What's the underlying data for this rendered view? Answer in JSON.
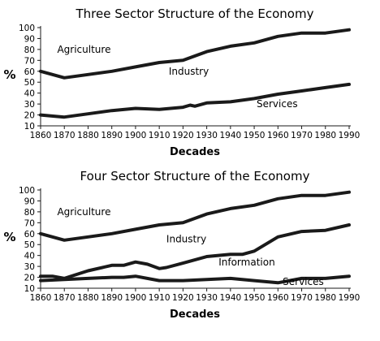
{
  "chart_data": [
    {
      "type": "line",
      "title": "Three Sector Structure of the Economy",
      "xlabel": "Decades",
      "ylabel": "%",
      "xlim": [
        1860,
        1990
      ],
      "ylim": [
        10,
        100
      ],
      "x_ticks": [
        "1860",
        "1870",
        "1880",
        "1890",
        "1900",
        "1910",
        "1920",
        "1930",
        "1940",
        "1950",
        "1960",
        "1970",
        "1980",
        "1990"
      ],
      "y_ticks": [
        "10",
        "20",
        "30",
        "40",
        "50",
        "60",
        "70",
        "80",
        "90",
        "100"
      ],
      "grid": false,
      "series": [
        {
          "name": "Agriculture",
          "points": [
            [
              1860,
              60
            ],
            [
              1870,
              54
            ],
            [
              1880,
              57
            ],
            [
              1890,
              60
            ],
            [
              1900,
              64
            ],
            [
              1910,
              68
            ],
            [
              1920,
              70
            ],
            [
              1930,
              78
            ],
            [
              1940,
              83
            ],
            [
              1950,
              86
            ],
            [
              1960,
              92
            ],
            [
              1970,
              95
            ],
            [
              1980,
              95
            ],
            [
              1990,
              98
            ]
          ]
        },
        {
          "name": "Industry",
          "points": [
            [
              1860,
              20
            ],
            [
              1870,
              18
            ],
            [
              1880,
              21
            ],
            [
              1890,
              24
            ],
            [
              1900,
              26
            ],
            [
              1910,
              25
            ],
            [
              1920,
              27
            ],
            [
              1923,
              29
            ],
            [
              1925,
              28
            ],
            [
              1930,
              31
            ],
            [
              1940,
              32
            ],
            [
              1950,
              35
            ],
            [
              1960,
              39
            ],
            [
              1970,
              42
            ],
            [
              1980,
              45
            ],
            [
              1990,
              48
            ]
          ]
        }
      ],
      "annotations": [
        {
          "text": "Agriculture",
          "x": 1867,
          "y": 77
        },
        {
          "text": "Industry",
          "x": 1914,
          "y": 57
        },
        {
          "text": "Services",
          "x": 1951,
          "y": 27
        }
      ]
    },
    {
      "type": "line",
      "title": "Four Sector Structure of the Economy",
      "xlabel": "Decades",
      "ylabel": "%",
      "xlim": [
        1860,
        1990
      ],
      "ylim": [
        10,
        100
      ],
      "x_ticks": [
        "1860",
        "1870",
        "1880",
        "1890",
        "1900",
        "1910",
        "1920",
        "1930",
        "1940",
        "1950",
        "1960",
        "1970",
        "1980",
        "1990"
      ],
      "y_ticks": [
        "10",
        "20",
        "30",
        "40",
        "50",
        "60",
        "70",
        "80",
        "90",
        "100"
      ],
      "grid": false,
      "series": [
        {
          "name": "Agriculture",
          "points": [
            [
              1860,
              60
            ],
            [
              1870,
              54
            ],
            [
              1880,
              57
            ],
            [
              1890,
              60
            ],
            [
              1900,
              64
            ],
            [
              1910,
              68
            ],
            [
              1920,
              70
            ],
            [
              1930,
              78
            ],
            [
              1940,
              83
            ],
            [
              1950,
              86
            ],
            [
              1960,
              92
            ],
            [
              1970,
              95
            ],
            [
              1980,
              95
            ],
            [
              1990,
              98
            ]
          ]
        },
        {
          "name": "Industry",
          "points": [
            [
              1860,
              21
            ],
            [
              1865,
              21
            ],
            [
              1870,
              19
            ],
            [
              1880,
              26
            ],
            [
              1890,
              31
            ],
            [
              1895,
              31
            ],
            [
              1900,
              34
            ],
            [
              1905,
              32
            ],
            [
              1910,
              28
            ],
            [
              1913,
              29
            ],
            [
              1920,
              33
            ],
            [
              1930,
              39
            ],
            [
              1940,
              41
            ],
            [
              1945,
              41
            ],
            [
              1950,
              44
            ],
            [
              1960,
              57
            ],
            [
              1970,
              62
            ],
            [
              1980,
              63
            ],
            [
              1990,
              68
            ]
          ]
        },
        {
          "name": "Information",
          "points": [
            [
              1860,
              17
            ],
            [
              1870,
              18
            ],
            [
              1880,
              19
            ],
            [
              1890,
              20
            ],
            [
              1895,
              20
            ],
            [
              1900,
              21
            ],
            [
              1910,
              17
            ],
            [
              1920,
              17
            ],
            [
              1930,
              18
            ],
            [
              1940,
              19
            ],
            [
              1950,
              17
            ],
            [
              1960,
              15
            ],
            [
              1970,
              19
            ],
            [
              1980,
              19
            ],
            [
              1990,
              21
            ]
          ]
        }
      ],
      "annotations": [
        {
          "text": "Agriculture",
          "x": 1867,
          "y": 77
        },
        {
          "text": "Industry",
          "x": 1913,
          "y": 52
        },
        {
          "text": "Information",
          "x": 1935,
          "y": 31
        },
        {
          "text": "Services",
          "x": 1962,
          "y": 13
        }
      ]
    }
  ]
}
